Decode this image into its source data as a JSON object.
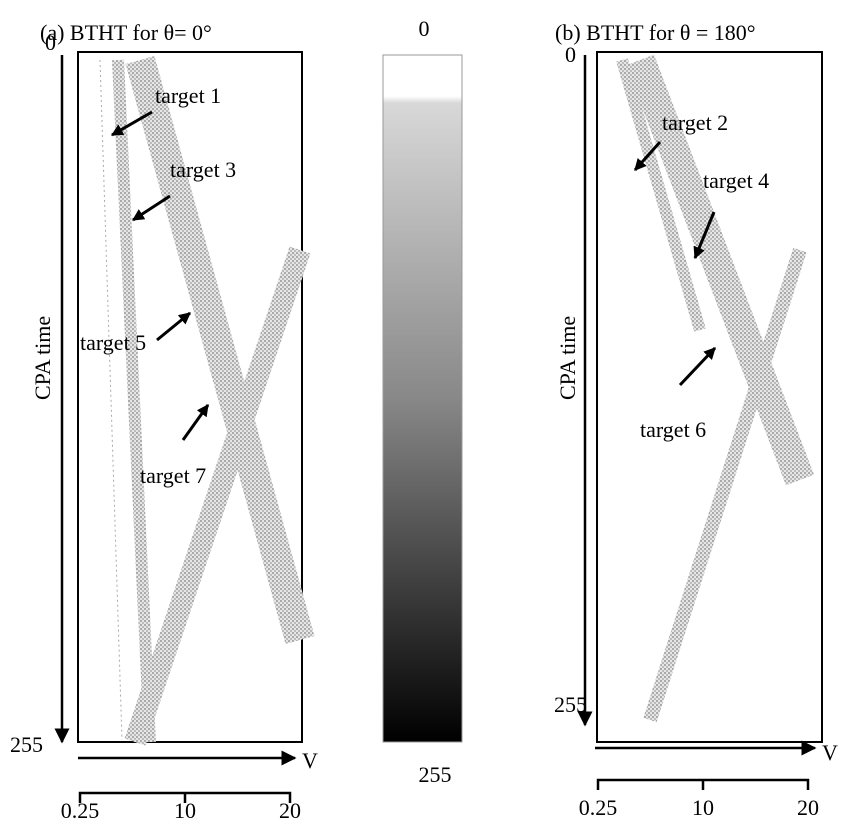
{
  "panels": [
    {
      "title": "(a) BTHT for θ= 0°",
      "y_axis_label": "CPA time",
      "y_top": "0",
      "y_bottom": "255",
      "x_axis_label": "V",
      "x_ticks": [
        "0.25",
        "10",
        "20"
      ],
      "targets": [
        "target 1",
        "target 3",
        "target 5",
        "target 7"
      ]
    },
    {
      "title": "(b) BTHT for θ = 180°",
      "y_axis_label": "CPA time",
      "y_top": "0",
      "y_bottom": "255",
      "x_axis_label": "V",
      "x_ticks": [
        "0.25",
        "10",
        "20"
      ],
      "targets": [
        "target 2",
        "target 4",
        "target 6"
      ]
    }
  ],
  "colorbar": {
    "top": "0",
    "bottom": "255"
  }
}
